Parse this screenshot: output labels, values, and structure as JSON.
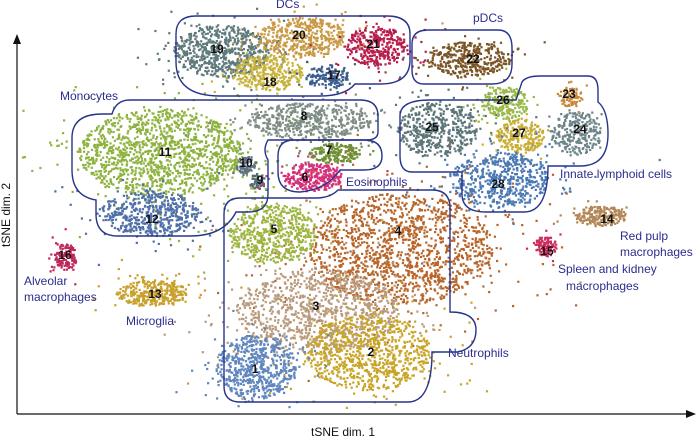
{
  "chart_data": {
    "type": "scatter",
    "title": "",
    "xlabel": "tSNE dim. 1",
    "ylabel": "tSNE dim. 2",
    "grid": false,
    "legend": "none",
    "clusters": [
      {
        "id": "1",
        "color": "#5f86bf"
      },
      {
        "id": "2",
        "color": "#c9a526"
      },
      {
        "id": "3",
        "color": "#b99a7c"
      },
      {
        "id": "4",
        "color": "#b8652a"
      },
      {
        "id": "5",
        "color": "#9cb53f"
      },
      {
        "id": "6",
        "color": "#d4317a"
      },
      {
        "id": "7",
        "color": "#6f8f36"
      },
      {
        "id": "8",
        "color": "#7d8d84"
      },
      {
        "id": "9",
        "color": "#556b77"
      },
      {
        "id": "10",
        "color": "#5e7380"
      },
      {
        "id": "11",
        "color": "#8eb23f"
      },
      {
        "id": "12",
        "color": "#4f6fa8"
      },
      {
        "id": "13",
        "color": "#c9a02c"
      },
      {
        "id": "14",
        "color": "#b28756"
      },
      {
        "id": "15",
        "color": "#cc2d5e"
      },
      {
        "id": "16",
        "color": "#c0275a"
      },
      {
        "id": "17",
        "color": "#3c5e8e"
      },
      {
        "id": "18",
        "color": "#c7b23a"
      },
      {
        "id": "19",
        "color": "#5f7a7c"
      },
      {
        "id": "20",
        "color": "#c99a45"
      },
      {
        "id": "21",
        "color": "#b81e4b"
      },
      {
        "id": "22",
        "color": "#7b5426"
      },
      {
        "id": "23",
        "color": "#c7883a"
      },
      {
        "id": "24",
        "color": "#6c8488"
      },
      {
        "id": "25",
        "color": "#5b7477"
      },
      {
        "id": "26",
        "color": "#98b848"
      },
      {
        "id": "27",
        "color": "#c8ad32"
      },
      {
        "id": "28",
        "color": "#4a78b3"
      }
    ],
    "groups": [
      {
        "key": "dcs",
        "lines": [
          "DCs"
        ]
      },
      {
        "key": "pdcs",
        "lines": [
          "pDCs"
        ]
      },
      {
        "key": "monocytes",
        "lines": [
          "Monocytes"
        ]
      },
      {
        "key": "eosinophils",
        "lines": [
          "Eosinophils"
        ]
      },
      {
        "key": "ilc",
        "lines": [
          "Innate lymphoid cells"
        ]
      },
      {
        "key": "redpulp",
        "lines": [
          "Red pulp",
          "macrophages"
        ]
      },
      {
        "key": "spleen",
        "lines": [
          "Spleen and kidney",
          "macrophages"
        ]
      },
      {
        "key": "alveolar",
        "lines": [
          "Alveolar",
          "macrophages"
        ]
      },
      {
        "key": "microglia",
        "lines": [
          "Microglia"
        ]
      },
      {
        "key": "neutrophils",
        "lines": [
          "Neutrophils"
        ]
      }
    ]
  }
}
